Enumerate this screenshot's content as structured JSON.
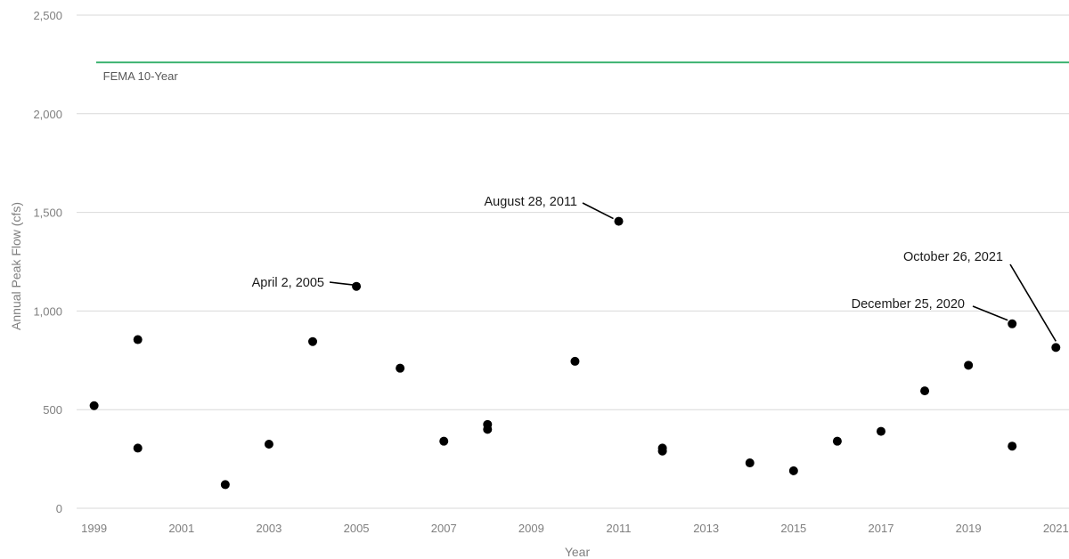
{
  "chart_data": {
    "type": "scatter",
    "title": "",
    "xlabel": "Year",
    "ylabel": "Annual Peak Flow (cfs)",
    "xlim": [
      1998.6,
      2021.3
    ],
    "ylim": [
      0,
      2500
    ],
    "x_ticks": [
      1999,
      2001,
      2003,
      2005,
      2007,
      2009,
      2011,
      2013,
      2015,
      2017,
      2019,
      2021
    ],
    "y_ticks": [
      0,
      500,
      1000,
      1500,
      2000,
      2500
    ],
    "x_tick_labels": [
      "1999",
      "2001",
      "2003",
      "2005",
      "2007",
      "2009",
      "2011",
      "2013",
      "2015",
      "2017",
      "2019",
      "2021"
    ],
    "y_tick_labels": [
      "0",
      "500",
      "1,000",
      "1,500",
      "2,000",
      "2,500"
    ],
    "grid": true,
    "reference_line": {
      "label": "FEMA 10-Year",
      "value": 2260,
      "color": "#3cb371"
    },
    "points": [
      {
        "x": 1999,
        "y": 520
      },
      {
        "x": 2000,
        "y": 855
      },
      {
        "x": 2000,
        "y": 305
      },
      {
        "x": 2002,
        "y": 120
      },
      {
        "x": 2003,
        "y": 325
      },
      {
        "x": 2004,
        "y": 845
      },
      {
        "x": 2005,
        "y": 1125
      },
      {
        "x": 2006,
        "y": 710
      },
      {
        "x": 2007,
        "y": 340
      },
      {
        "x": 2008,
        "y": 425
      },
      {
        "x": 2008,
        "y": 400
      },
      {
        "x": 2010,
        "y": 745
      },
      {
        "x": 2011,
        "y": 1455
      },
      {
        "x": 2012,
        "y": 305
      },
      {
        "x": 2012,
        "y": 290
      },
      {
        "x": 2014,
        "y": 230
      },
      {
        "x": 2015,
        "y": 190
      },
      {
        "x": 2016,
        "y": 340
      },
      {
        "x": 2017,
        "y": 390
      },
      {
        "x": 2018,
        "y": 595
      },
      {
        "x": 2019,
        "y": 725
      },
      {
        "x": 2020,
        "y": 935
      },
      {
        "x": 2020,
        "y": 315
      },
      {
        "x": 2021,
        "y": 815
      }
    ],
    "annotations": [
      {
        "text": "April 2, 2005",
        "x": 2005,
        "y": 1125
      },
      {
        "text": "August 28, 2011",
        "x": 2011,
        "y": 1455
      },
      {
        "text": "December 25, 2020",
        "x": 2020,
        "y": 935
      },
      {
        "text": "October 26, 2021",
        "x": 2021,
        "y": 815
      }
    ]
  }
}
